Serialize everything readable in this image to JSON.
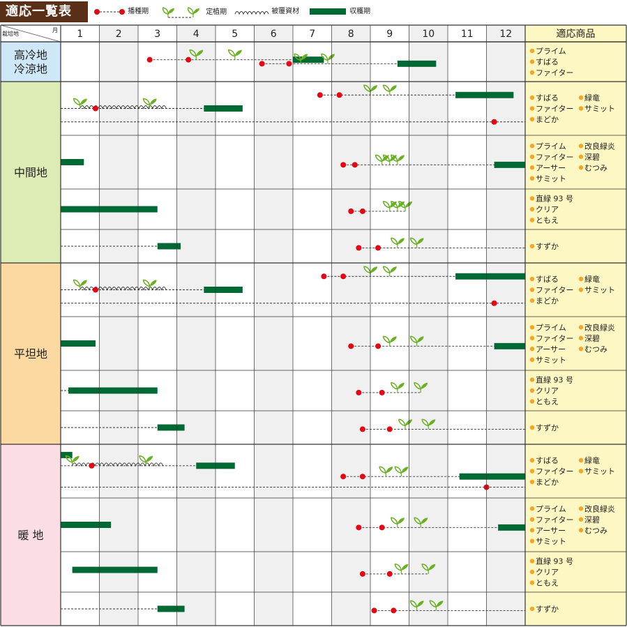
{
  "title": "適応一覧表",
  "legend": {
    "sowing": "播種期",
    "planting": "定植期",
    "covering": "被覆資材",
    "harvest": "収穫期"
  },
  "header": {
    "region": "栽培地",
    "month": "月",
    "products": "適応商品"
  },
  "colors": {
    "sowing": "#e30613",
    "leaf": "#6ab023",
    "harvest": "#006934",
    "region_cold": "#cfe8f7",
    "region_mid": "#dcecb4",
    "region_flat": "#fbd9a0",
    "region_warm": "#fbdde6",
    "product_bg": "#fdf7c3",
    "product_bullet": "#f5a623",
    "shade": "#f0f0f0",
    "title_bg": "#5a2f17"
  },
  "chart_data": {
    "type": "table",
    "months": [
      "1",
      "2",
      "3",
      "4",
      "5",
      "6",
      "7",
      "8",
      "9",
      "10",
      "11",
      "12"
    ],
    "regions": [
      {
        "label": "高冷地\n冷涼地",
        "color": "region_cold",
        "rows": [
          {
            "products": [
              "プライム",
              "すばる",
              "ファイター"
            ],
            "lines": [
              {
                "sow": [
                  3.3,
                  4.3
                ],
                "plant": [
                  4.5,
                  5.5
                ],
                "harvest": [
                  7.0,
                  7.8
                ]
              },
              {
                "sow": [
                  6.2,
                  6.9
                ],
                "plant": [
                  7.2,
                  7.9
                ],
                "harvest": [
                  9.7,
                  10.7
                ]
              }
            ]
          }
        ]
      },
      {
        "label": "中間地",
        "color": "region_mid",
        "rows": [
          {
            "products": [
              "すばる",
              "緑竜",
              "ファイター",
              "サミット",
              "まどか"
            ],
            "lines": [
              {
                "sow": [
                  7.7,
                  8.2
                ],
                "plant": [
                  9.0,
                  9.5
                ],
                "harvest": [
                  11.2,
                  12.7
                ]
              },
              {
                "start": 1,
                "sow": [
                  12.2
                ],
                "end": 13
              }
            ],
            "line2": {
              "start": 1,
              "sow": [
                1.9
              ],
              "plant": [
                1.5,
                3.3
              ],
              "cover": [
                1.5,
                3.8
              ],
              "harvest": [
                4.7,
                5.7
              ],
              "end": 5.7
            }
          },
          {
            "products": [
              "プライム",
              "改良緑炎",
              "ファイター",
              "深碧",
              "アーサー",
              "むつみ",
              "サミット"
            ],
            "lines": [
              {
                "start": 1,
                "harvest": [
                  1.0,
                  1.6
                ]
              },
              {
                "sow": [
                  8.3,
                  8.6
                ],
                "plant": [
                  9.3,
                  9.5,
                  9.7
                ],
                "harvest": [
                  12.2,
                  13.0
                ]
              }
            ]
          },
          {
            "products": [
              "直緑 93 号",
              "クリア",
              "ともえ"
            ],
            "lines": [
              {
                "start": 1,
                "harvest": [
                  1.0,
                  3.5
                ]
              },
              {
                "sow": [
                  8.5,
                  8.8
                ],
                "plant": [
                  9.5,
                  9.7,
                  9.9
                ]
              }
            ]
          },
          {
            "products": [
              "すずか"
            ],
            "lines": [
              {
                "start": 1,
                "harvest": [
                  3.5,
                  4.1
                ]
              },
              {
                "sow": [
                  8.7,
                  9.2
                ],
                "plant": [
                  9.7,
                  10.2
                ],
                "end": 13
              }
            ]
          }
        ]
      },
      {
        "label": "平坦地",
        "color": "region_flat",
        "rows": [
          {
            "products": [
              "すばる",
              "緑竜",
              "ファイター",
              "サミット",
              "まどか"
            ],
            "lines": [
              {
                "sow": [
                  7.8,
                  8.3
                ],
                "plant": [
                  9.0,
                  9.5
                ],
                "harvest": [
                  11.2,
                  13.0
                ]
              },
              {
                "start": 1,
                "sow": [
                  12.2
                ],
                "end": 13
              }
            ],
            "line2": {
              "start": 1,
              "sow": [
                1.9
              ],
              "plant": [
                1.5,
                3.3
              ],
              "cover": [
                1.5,
                3.8
              ],
              "harvest": [
                4.7,
                5.7
              ],
              "end": 5.7
            }
          },
          {
            "products": [
              "プライム",
              "改良緑炎",
              "ファイター",
              "深碧",
              "アーサー",
              "むつみ",
              "サミット"
            ],
            "lines": [
              {
                "start": 1,
                "harvest": [
                  1.0,
                  1.9
                ]
              },
              {
                "sow": [
                  8.5,
                  9.2
                ],
                "plant": [
                  9.5,
                  10.2
                ],
                "harvest": [
                  12.2,
                  13.0
                ]
              }
            ]
          },
          {
            "products": [
              "直緑 93 号",
              "クリア",
              "ともえ"
            ],
            "lines": [
              {
                "start": 1,
                "harvest": [
                  1.2,
                  3.5
                ]
              },
              {
                "sow": [
                  8.7,
                  9.3
                ],
                "plant": [
                  9.7,
                  10.3
                ]
              }
            ]
          },
          {
            "products": [
              "すずか"
            ],
            "lines": [
              {
                "start": 1,
                "harvest": [
                  3.5,
                  4.2
                ]
              },
              {
                "sow": [
                  8.8,
                  9.5
                ],
                "plant": [
                  9.9,
                  10.5
                ],
                "end": 13
              }
            ]
          }
        ]
      },
      {
        "label": "暖 地",
        "color": "region_warm",
        "rows": [
          {
            "products": [
              "すばる",
              "緑竜",
              "ファイター",
              "サミット",
              "まどか"
            ],
            "lines": [
              {
                "start": 1,
                "harvest": [
                  1.0,
                  1.3
                ]
              },
              {
                "sow": [
                  8.3,
                  8.8
                ],
                "plant": [
                  9.4,
                  9.8
                ],
                "harvest": [
                  11.3,
                  13.0
                ]
              },
              {
                "start": 1,
                "sow": [
                  12.0
                ],
                "end": 13
              }
            ],
            "line2": {
              "start": 1,
              "sow": [
                1.8
              ],
              "plant": [
                1.3,
                3.2
              ],
              "cover": [
                1.3,
                3.7
              ],
              "harvest": [
                4.5,
                5.5
              ],
              "end": 5.5
            }
          },
          {
            "products": [
              "プライム",
              "改良緑炎",
              "ファイター",
              "深碧",
              "アーサー",
              "むつみ",
              "サミット"
            ],
            "lines": [
              {
                "start": 1,
                "harvest": [
                  1.0,
                  2.3
                ]
              },
              {
                "sow": [
                  8.7,
                  9.3
                ],
                "plant": [
                  9.7,
                  10.3
                ],
                "harvest": [
                  12.3,
                  13.0
                ]
              }
            ]
          },
          {
            "products": [
              "直緑 93 号",
              "クリア",
              "ともえ"
            ],
            "lines": [
              {
                "start": 1.3,
                "harvest": [
                  1.3,
                  3.5
                ]
              },
              {
                "sow": [
                  8.8,
                  9.5
                ],
                "plant": [
                  9.8,
                  10.5
                ]
              }
            ]
          },
          {
            "products": [
              "すずか"
            ],
            "lines": [
              {
                "start": 1,
                "harvest": [
                  3.5,
                  4.2
                ]
              },
              {
                "sow": [
                  9.1,
                  9.6
                ],
                "plant": [
                  10.2,
                  10.7
                ],
                "end": 13
              }
            ]
          }
        ]
      }
    ]
  }
}
